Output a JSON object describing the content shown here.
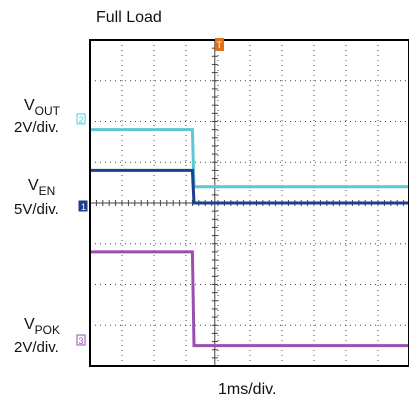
{
  "title": "Full Load",
  "x_label": "1ms/div.",
  "colors": {
    "vout": "#5cc8d4",
    "ven": "#1c3f8f",
    "vpok": "#9a4fae",
    "trigger": "#e0701a",
    "grid": "#444444",
    "frame": "#000000"
  },
  "channels": [
    {
      "id": "vout",
      "name": "V",
      "sub": "OUT",
      "scale": "2V/div.",
      "marker": "2"
    },
    {
      "id": "ven",
      "name": "V",
      "sub": "EN",
      "scale": "5V/div.",
      "marker": "1"
    },
    {
      "id": "vpok",
      "name": "V",
      "sub": "POK",
      "scale": "2V/div.",
      "marker": "3"
    }
  ],
  "trigger_marker": "T",
  "chart_data": {
    "type": "line",
    "title": "Full Load",
    "xlabel": "1ms/div.",
    "x_divisions": 10,
    "y_divisions": 8,
    "grid": true,
    "series": [
      {
        "name": "VOUT",
        "scale": "2V/div.",
        "x": [
          0,
          3.2,
          3.25,
          10
        ],
        "y": [
          5.8,
          5.8,
          4.4,
          4.4
        ]
      },
      {
        "name": "VEN",
        "scale": "5V/div.",
        "x": [
          0,
          3.2,
          3.25,
          10
        ],
        "y": [
          4.8,
          4.8,
          4.0,
          4.0
        ]
      },
      {
        "name": "VPOK",
        "scale": "2V/div.",
        "x": [
          0,
          3.2,
          3.25,
          10
        ],
        "y": [
          2.8,
          2.8,
          0.5,
          0.5
        ]
      }
    ]
  }
}
